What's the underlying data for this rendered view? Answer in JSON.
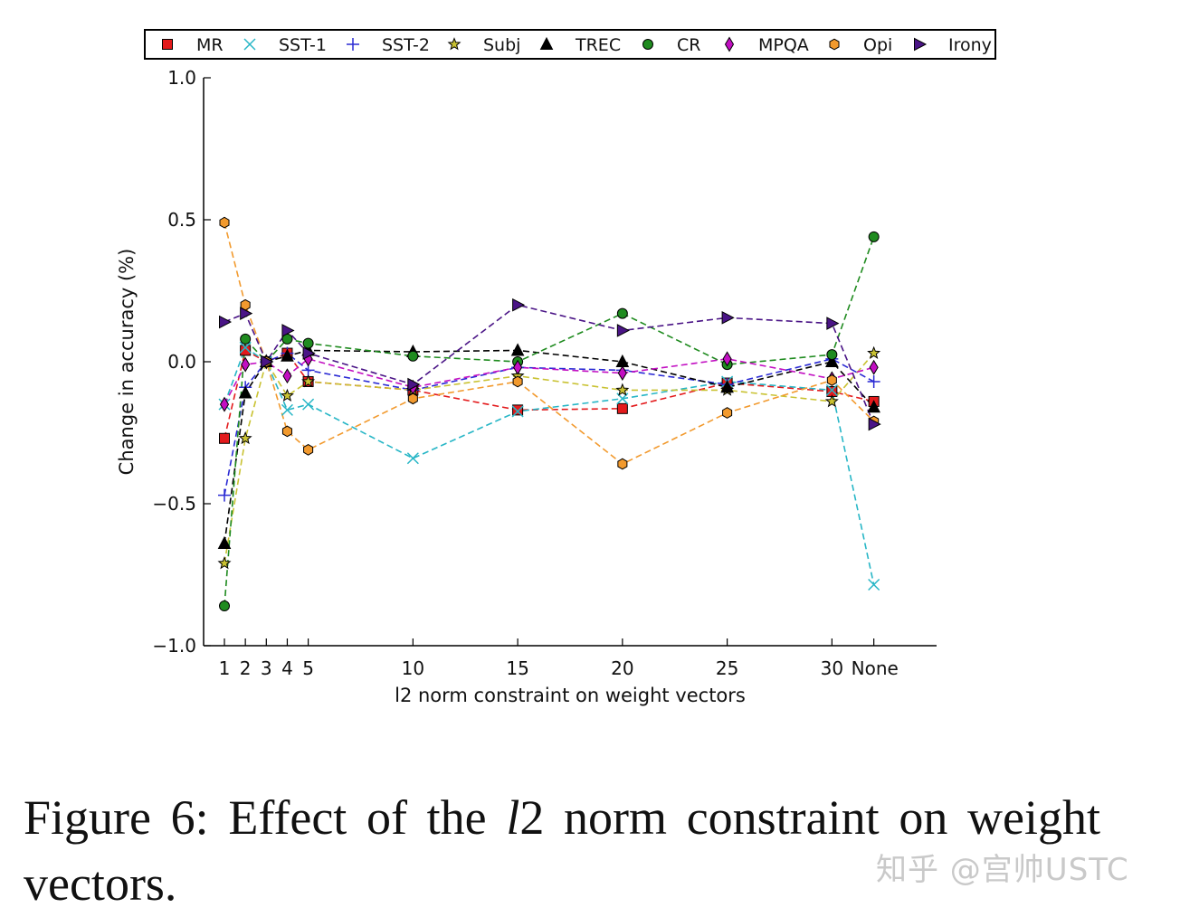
{
  "chart_data": {
    "type": "line",
    "title": "",
    "xlabel": "l2 norm constraint on weight vectors",
    "ylabel": "Change in accuracy (%)",
    "ylim": [
      -1.0,
      1.0
    ],
    "yticks": [
      -1.0,
      -0.5,
      0.0,
      0.5,
      1.0
    ],
    "ytick_labels": [
      "−1.0",
      "−0.5",
      "0.0",
      "0.5",
      "1.0"
    ],
    "x_positions": [
      1,
      2,
      3,
      4,
      5,
      10,
      15,
      20,
      25,
      30,
      32
    ],
    "xtick_labels": [
      "1",
      "2",
      "3",
      "4",
      "5",
      "10",
      "15",
      "20",
      "25",
      "30",
      "None"
    ],
    "xlim": [
      0,
      35
    ],
    "grid": false,
    "legend_position": "top",
    "series": [
      {
        "name": "MR",
        "color": "#e31a1c",
        "marker": "square",
        "values": [
          -0.27,
          0.04,
          0.0,
          0.03,
          -0.07,
          -0.1,
          -0.17,
          -0.165,
          -0.075,
          -0.105,
          -0.14
        ]
      },
      {
        "name": "SST-1",
        "color": "#27b6c6",
        "marker": "x",
        "values": [
          -0.15,
          0.05,
          0.0,
          -0.17,
          -0.15,
          -0.34,
          -0.175,
          -0.13,
          -0.07,
          -0.1,
          -0.785
        ]
      },
      {
        "name": "SST-2",
        "color": "#2a2ad4",
        "marker": "plus",
        "values": [
          -0.47,
          -0.09,
          0.0,
          0.03,
          -0.03,
          -0.1,
          -0.02,
          -0.03,
          -0.08,
          0.01,
          -0.07
        ]
      },
      {
        "name": "Subj",
        "color": "#c9c232",
        "marker": "star",
        "values": [
          -0.71,
          -0.27,
          0.0,
          -0.12,
          -0.07,
          -0.1,
          -0.05,
          -0.1,
          -0.1,
          -0.14,
          0.03
        ]
      },
      {
        "name": "TREC",
        "color": "#000000",
        "marker": "triangle",
        "values": [
          -0.64,
          -0.11,
          0.0,
          0.02,
          0.04,
          0.035,
          0.04,
          0.0,
          -0.09,
          0.0,
          -0.16
        ]
      },
      {
        "name": "CR",
        "color": "#1f8b1f",
        "marker": "circle",
        "values": [
          -0.86,
          0.08,
          0.0,
          0.08,
          0.065,
          0.02,
          0.0,
          0.17,
          -0.01,
          0.025,
          0.44
        ]
      },
      {
        "name": "MPQA",
        "color": "#c20fc2",
        "marker": "diamond",
        "values": [
          -0.15,
          -0.01,
          0.0,
          -0.05,
          0.01,
          -0.09,
          -0.02,
          -0.04,
          0.01,
          -0.06,
          -0.02
        ]
      },
      {
        "name": "Opi",
        "color": "#f29a2e",
        "marker": "hexagon",
        "values": [
          0.49,
          0.2,
          0.0,
          -0.245,
          -0.31,
          -0.13,
          -0.07,
          -0.36,
          -0.18,
          -0.065,
          -0.21
        ]
      },
      {
        "name": "Irony",
        "color": "#4a1486",
        "marker": "triangle-right",
        "values": [
          0.14,
          0.17,
          0.0,
          0.11,
          0.03,
          -0.08,
          0.2,
          0.11,
          0.155,
          0.135,
          -0.22
        ]
      }
    ]
  },
  "caption": {
    "prefix": "Figure 6:  Effect of the ",
    "italic": "l",
    "suffix": "2 norm constraint on weight vectors."
  },
  "watermark": "知乎 @宫帅USTC"
}
